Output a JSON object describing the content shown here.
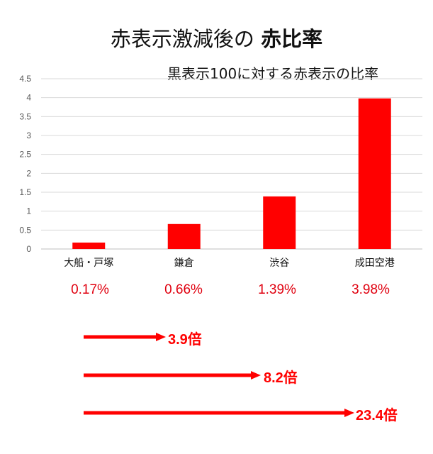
{
  "title_prefix": "赤表示激減後の",
  "title_bold": "赤比率",
  "chart_data": {
    "type": "bar",
    "subtitle": "黒表示100に対する赤表示の比率",
    "categories": [
      "大船・戸塚",
      "鎌倉",
      "渋谷",
      "成田空港"
    ],
    "values": [
      0.17,
      0.66,
      1.39,
      3.98
    ],
    "ylim": [
      0,
      4.5
    ],
    "yticks": [
      "0",
      "0.5",
      "1",
      "1.5",
      "2",
      "2.5",
      "3",
      "3.5",
      "4",
      "4.5"
    ],
    "grid": true,
    "bar_color": "#ff0000"
  },
  "percent_labels": [
    "0.17%",
    "0.66%",
    "1.39%",
    "3.98%"
  ],
  "ratio_arrows": [
    {
      "label": "3.9倍",
      "color": "#ff0000"
    },
    {
      "label": "8.2倍",
      "color": "#ff0000"
    },
    {
      "label": "23.4倍",
      "color": "#ff0000"
    }
  ]
}
